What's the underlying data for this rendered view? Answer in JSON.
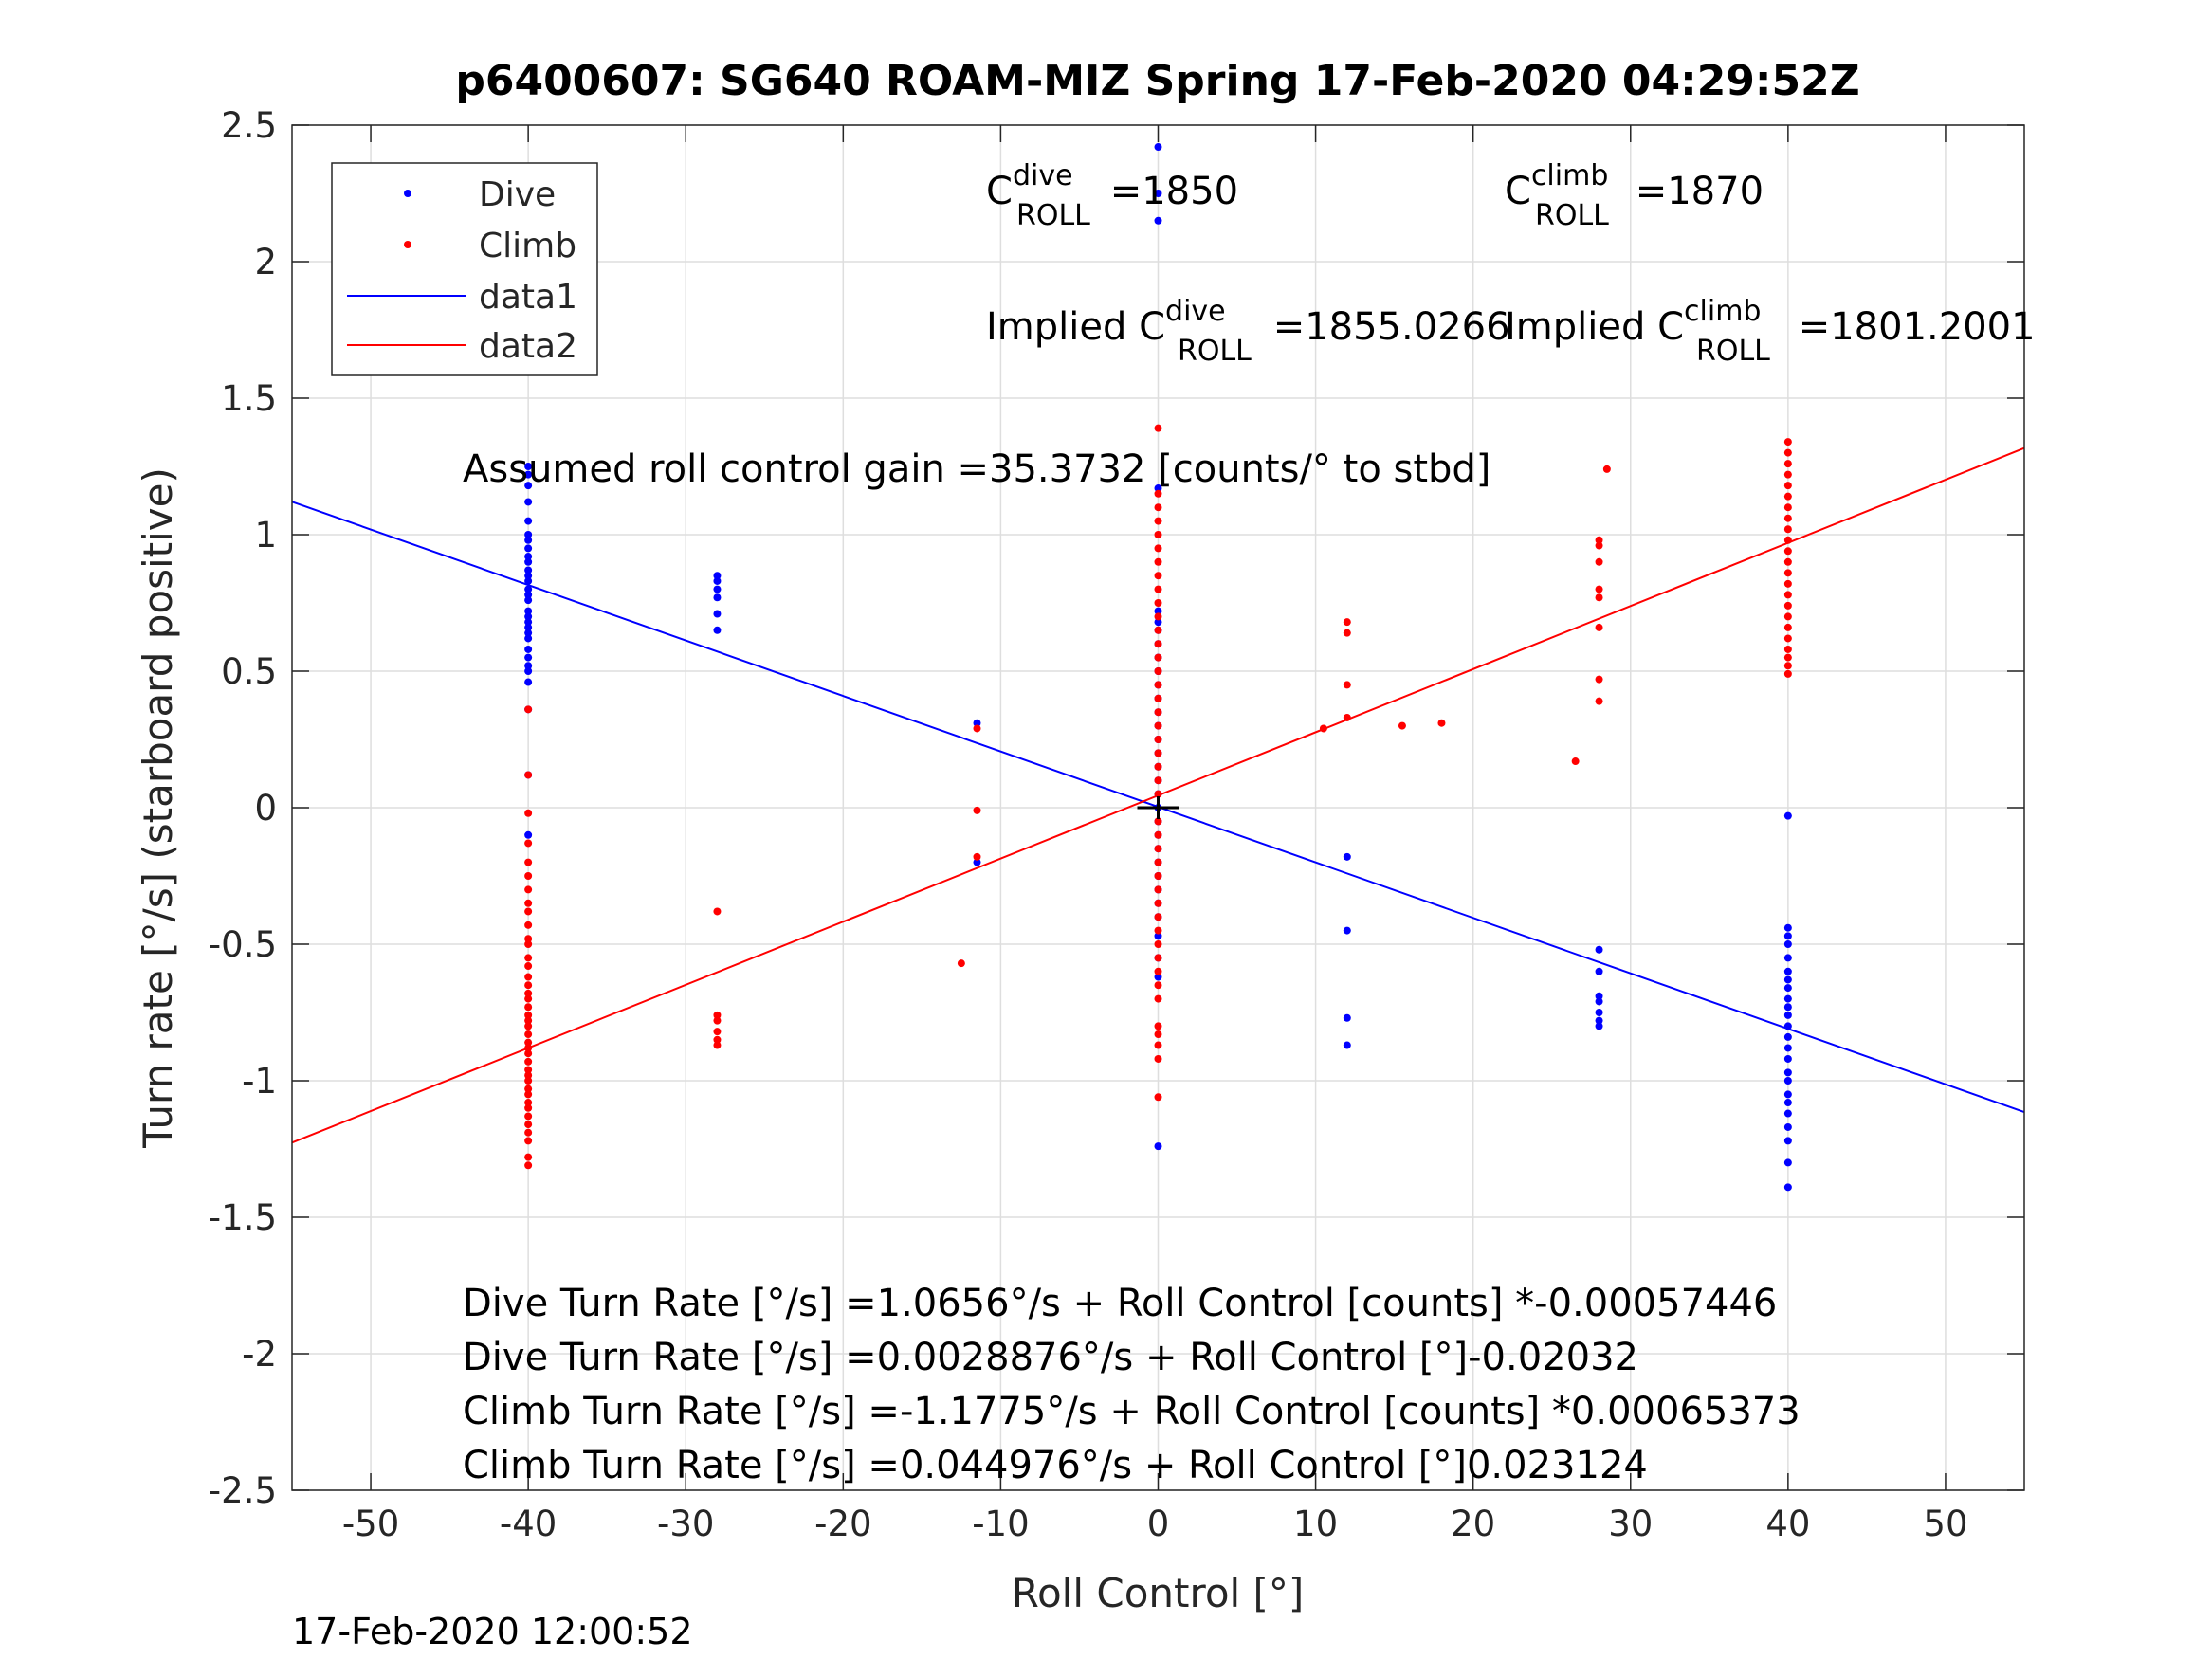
{
  "chart_data": {
    "type": "scatter",
    "title": "p6400607: SG640 ROAM-MIZ Spring 17-Feb-2020 04:29:52Z",
    "xlabel": "Roll Control [°]",
    "ylabel": "Turn rate [°/s] (starboard positive)",
    "xlim": [
      -55,
      55
    ],
    "ylim": [
      -2.5,
      2.5
    ],
    "x_ticks": [
      -50,
      -40,
      -30,
      -20,
      -10,
      0,
      10,
      20,
      30,
      40,
      50
    ],
    "x_tick_labels": [
      "-50",
      "-40",
      "-30",
      "-20",
      "-10",
      "0",
      "10",
      "20",
      "30",
      "40",
      "50"
    ],
    "y_ticks": [
      -2.5,
      -2,
      -1.5,
      -1,
      -0.5,
      0,
      0.5,
      1,
      1.5,
      2,
      2.5
    ],
    "y_tick_labels": [
      "-2.5",
      "-2",
      "-1.5",
      "-1",
      "-0.5",
      "0",
      "0.5",
      "1",
      "1.5",
      "2",
      "2.5"
    ],
    "grid": true,
    "legend_position": "top-left",
    "series": [
      {
        "name": "Dive",
        "kind": "scatter",
        "color": "#0000ff",
        "points": [
          [
            -40,
            1.25
          ],
          [
            -40,
            1.22
          ],
          [
            -40,
            1.18
          ],
          [
            -40,
            1.12
          ],
          [
            -40,
            1.05
          ],
          [
            -40,
            1.0
          ],
          [
            -40,
            0.98
          ],
          [
            -40,
            0.95
          ],
          [
            -40,
            0.92
          ],
          [
            -40,
            0.9
          ],
          [
            -40,
            0.87
          ],
          [
            -40,
            0.85
          ],
          [
            -40,
            0.83
          ],
          [
            -40,
            0.8
          ],
          [
            -40,
            0.78
          ],
          [
            -40,
            0.76
          ],
          [
            -40,
            0.72
          ],
          [
            -40,
            0.7
          ],
          [
            -40,
            0.68
          ],
          [
            -40,
            0.66
          ],
          [
            -40,
            0.64
          ],
          [
            -40,
            0.62
          ],
          [
            -40,
            0.58
          ],
          [
            -40,
            0.55
          ],
          [
            -40,
            0.52
          ],
          [
            -40,
            0.5
          ],
          [
            -40,
            0.46
          ],
          [
            -40,
            0.36
          ],
          [
            -40,
            0.12
          ],
          [
            -40,
            -0.1
          ],
          [
            -28,
            0.85
          ],
          [
            -28,
            0.83
          ],
          [
            -28,
            0.8
          ],
          [
            -28,
            0.77
          ],
          [
            -28,
            0.71
          ],
          [
            -28,
            0.65
          ],
          [
            -11.5,
            0.31
          ],
          [
            -11.5,
            -0.2
          ],
          [
            0,
            2.42
          ],
          [
            0,
            2.25
          ],
          [
            0,
            2.15
          ],
          [
            0,
            1.17
          ],
          [
            0,
            0.72
          ],
          [
            0,
            0.68
          ],
          [
            0,
            0.65
          ],
          [
            0,
            0.6
          ],
          [
            0,
            0.55
          ],
          [
            0,
            0.5
          ],
          [
            0,
            0.45
          ],
          [
            0,
            0.4
          ],
          [
            0,
            0.35
          ],
          [
            0,
            0.3
          ],
          [
            0,
            0.25
          ],
          [
            0,
            0.2
          ],
          [
            0,
            0.15
          ],
          [
            0,
            0.1
          ],
          [
            0,
            0.05
          ],
          [
            0,
            0.0
          ],
          [
            0,
            -0.05
          ],
          [
            0,
            -0.1
          ],
          [
            0,
            -0.15
          ],
          [
            0,
            -0.2
          ],
          [
            0,
            -0.25
          ],
          [
            0,
            -0.3
          ],
          [
            0,
            -0.35
          ],
          [
            0,
            -0.4
          ],
          [
            0,
            -0.47
          ],
          [
            0,
            -0.55
          ],
          [
            0,
            -0.62
          ],
          [
            0,
            -1.24
          ],
          [
            12,
            -0.18
          ],
          [
            12,
            -0.45
          ],
          [
            12,
            -0.77
          ],
          [
            12,
            -0.87
          ],
          [
            28,
            -0.52
          ],
          [
            28,
            -0.6
          ],
          [
            28,
            -0.69
          ],
          [
            28,
            -0.71
          ],
          [
            28,
            -0.75
          ],
          [
            28,
            -0.78
          ],
          [
            28,
            -0.8
          ],
          [
            40,
            -0.03
          ],
          [
            40,
            -0.44
          ],
          [
            40,
            -0.47
          ],
          [
            40,
            -0.5
          ],
          [
            40,
            -0.55
          ],
          [
            40,
            -0.6
          ],
          [
            40,
            -0.63
          ],
          [
            40,
            -0.66
          ],
          [
            40,
            -0.7
          ],
          [
            40,
            -0.73
          ],
          [
            40,
            -0.76
          ],
          [
            40,
            -0.8
          ],
          [
            40,
            -0.84
          ],
          [
            40,
            -0.88
          ],
          [
            40,
            -0.92
          ],
          [
            40,
            -0.97
          ],
          [
            40,
            -1.0
          ],
          [
            40,
            -1.05
          ],
          [
            40,
            -1.08
          ],
          [
            40,
            -1.12
          ],
          [
            40,
            -1.17
          ],
          [
            40,
            -1.22
          ],
          [
            40,
            -1.3
          ],
          [
            40,
            -1.39
          ]
        ]
      },
      {
        "name": "Climb",
        "kind": "scatter",
        "color": "#ff0000",
        "points": [
          [
            -40,
            0.36
          ],
          [
            -40,
            0.12
          ],
          [
            -40,
            -0.02
          ],
          [
            -40,
            -0.13
          ],
          [
            -40,
            -0.2
          ],
          [
            -40,
            -0.25
          ],
          [
            -40,
            -0.3
          ],
          [
            -40,
            -0.35
          ],
          [
            -40,
            -0.38
          ],
          [
            -40,
            -0.43
          ],
          [
            -40,
            -0.48
          ],
          [
            -40,
            -0.5
          ],
          [
            -40,
            -0.55
          ],
          [
            -40,
            -0.58
          ],
          [
            -40,
            -0.62
          ],
          [
            -40,
            -0.65
          ],
          [
            -40,
            -0.68
          ],
          [
            -40,
            -0.7
          ],
          [
            -40,
            -0.73
          ],
          [
            -40,
            -0.76
          ],
          [
            -40,
            -0.78
          ],
          [
            -40,
            -0.8
          ],
          [
            -40,
            -0.83
          ],
          [
            -40,
            -0.86
          ],
          [
            -40,
            -0.88
          ],
          [
            -40,
            -0.9
          ],
          [
            -40,
            -0.93
          ],
          [
            -40,
            -0.96
          ],
          [
            -40,
            -0.98
          ],
          [
            -40,
            -1.0
          ],
          [
            -40,
            -1.03
          ],
          [
            -40,
            -1.05
          ],
          [
            -40,
            -1.08
          ],
          [
            -40,
            -1.1
          ],
          [
            -40,
            -1.13
          ],
          [
            -40,
            -1.16
          ],
          [
            -40,
            -1.19
          ],
          [
            -40,
            -1.22
          ],
          [
            -40,
            -1.28
          ],
          [
            -40,
            -1.31
          ],
          [
            -28,
            -0.38
          ],
          [
            -28,
            -0.76
          ],
          [
            -28,
            -0.78
          ],
          [
            -28,
            -0.82
          ],
          [
            -28,
            -0.85
          ],
          [
            -28,
            -0.87
          ],
          [
            -12.5,
            -0.57
          ],
          [
            -11.5,
            0.29
          ],
          [
            -11.5,
            -0.01
          ],
          [
            -11.5,
            -0.18
          ],
          [
            0,
            1.39
          ],
          [
            0,
            1.15
          ],
          [
            0,
            1.1
          ],
          [
            0,
            1.05
          ],
          [
            0,
            1.0
          ],
          [
            0,
            0.95
          ],
          [
            0,
            0.9
          ],
          [
            0,
            0.85
          ],
          [
            0,
            0.8
          ],
          [
            0,
            0.75
          ],
          [
            0,
            0.7
          ],
          [
            0,
            0.65
          ],
          [
            0,
            0.6
          ],
          [
            0,
            0.55
          ],
          [
            0,
            0.5
          ],
          [
            0,
            0.45
          ],
          [
            0,
            0.4
          ],
          [
            0,
            0.35
          ],
          [
            0,
            0.3
          ],
          [
            0,
            0.25
          ],
          [
            0,
            0.2
          ],
          [
            0,
            0.15
          ],
          [
            0,
            0.1
          ],
          [
            0,
            0.05
          ],
          [
            0,
            -0.05
          ],
          [
            0,
            -0.1
          ],
          [
            0,
            -0.15
          ],
          [
            0,
            -0.2
          ],
          [
            0,
            -0.25
          ],
          [
            0,
            -0.3
          ],
          [
            0,
            -0.35
          ],
          [
            0,
            -0.4
          ],
          [
            0,
            -0.45
          ],
          [
            0,
            -0.5
          ],
          [
            0,
            -0.55
          ],
          [
            0,
            -0.6
          ],
          [
            0,
            -0.65
          ],
          [
            0,
            -0.7
          ],
          [
            0,
            -0.8
          ],
          [
            0,
            -0.83
          ],
          [
            0,
            -0.87
          ],
          [
            0,
            -0.92
          ],
          [
            0,
            -1.06
          ],
          [
            10.5,
            0.29
          ],
          [
            12,
            0.68
          ],
          [
            12,
            0.64
          ],
          [
            12,
            0.45
          ],
          [
            12,
            0.33
          ],
          [
            15.5,
            0.3
          ],
          [
            18,
            0.31
          ],
          [
            26.5,
            0.17
          ],
          [
            28,
            0.98
          ],
          [
            28,
            0.96
          ],
          [
            28,
            0.9
          ],
          [
            28,
            0.8
          ],
          [
            28,
            0.77
          ],
          [
            28,
            0.66
          ],
          [
            28,
            0.47
          ],
          [
            28,
            0.39
          ],
          [
            28.5,
            1.24
          ],
          [
            40,
            1.34
          ],
          [
            40,
            1.3
          ],
          [
            40,
            1.26
          ],
          [
            40,
            1.22
          ],
          [
            40,
            1.18
          ],
          [
            40,
            1.14
          ],
          [
            40,
            1.1
          ],
          [
            40,
            1.06
          ],
          [
            40,
            1.02
          ],
          [
            40,
            0.98
          ],
          [
            40,
            0.94
          ],
          [
            40,
            0.9
          ],
          [
            40,
            0.86
          ],
          [
            40,
            0.82
          ],
          [
            40,
            0.78
          ],
          [
            40,
            0.74
          ],
          [
            40,
            0.7
          ],
          [
            40,
            0.66
          ],
          [
            40,
            0.62
          ],
          [
            40,
            0.58
          ],
          [
            40,
            0.55
          ],
          [
            40,
            0.52
          ],
          [
            40,
            0.49
          ]
        ]
      },
      {
        "name": "data1",
        "kind": "line",
        "color": "#0000ff",
        "x": [
          -55,
          55
        ],
        "y": [
          1.1205,
          -1.1147
        ]
      },
      {
        "name": "data2",
        "kind": "line",
        "color": "#ff0000",
        "x": [
          -55,
          55
        ],
        "y": [
          -1.2269,
          1.3169
        ]
      }
    ],
    "marker": {
      "x": 0,
      "y": 0,
      "symbol": "+",
      "color": "#000000"
    },
    "annotations": {
      "c_dive": {
        "base": "C",
        "sup": "dive",
        "sub": "ROLL",
        "value": " =1850"
      },
      "c_climb": {
        "base": "C",
        "sup": "climb",
        "sub": "ROLL",
        "value": " =1870"
      },
      "implied_dive": {
        "prefix": "Implied C",
        "sup": "dive",
        "sub": "ROLL",
        "value": " =1855.0266"
      },
      "implied_climb": {
        "prefix": "Implied C",
        "sup": "climb",
        "sub": "ROLL",
        "value": " =1801.2001"
      },
      "gain": "Assumed roll control gain =35.3732 [counts/° to stbd]",
      "fit_lines": [
        "Dive Turn Rate [°/s] =1.0656°/s + Roll Control [counts] *-0.00057446",
        "Dive Turn Rate [°/s] =0.0028876°/s + Roll Control [°]-0.02032",
        "Climb Turn Rate [°/s] =-1.1775°/s + Roll Control [counts] *0.00065373",
        "Climb Turn Rate [°/s] =0.044976°/s + Roll Control [°]0.023124"
      ]
    },
    "timestamp": "17-Feb-2020 12:00:52"
  }
}
